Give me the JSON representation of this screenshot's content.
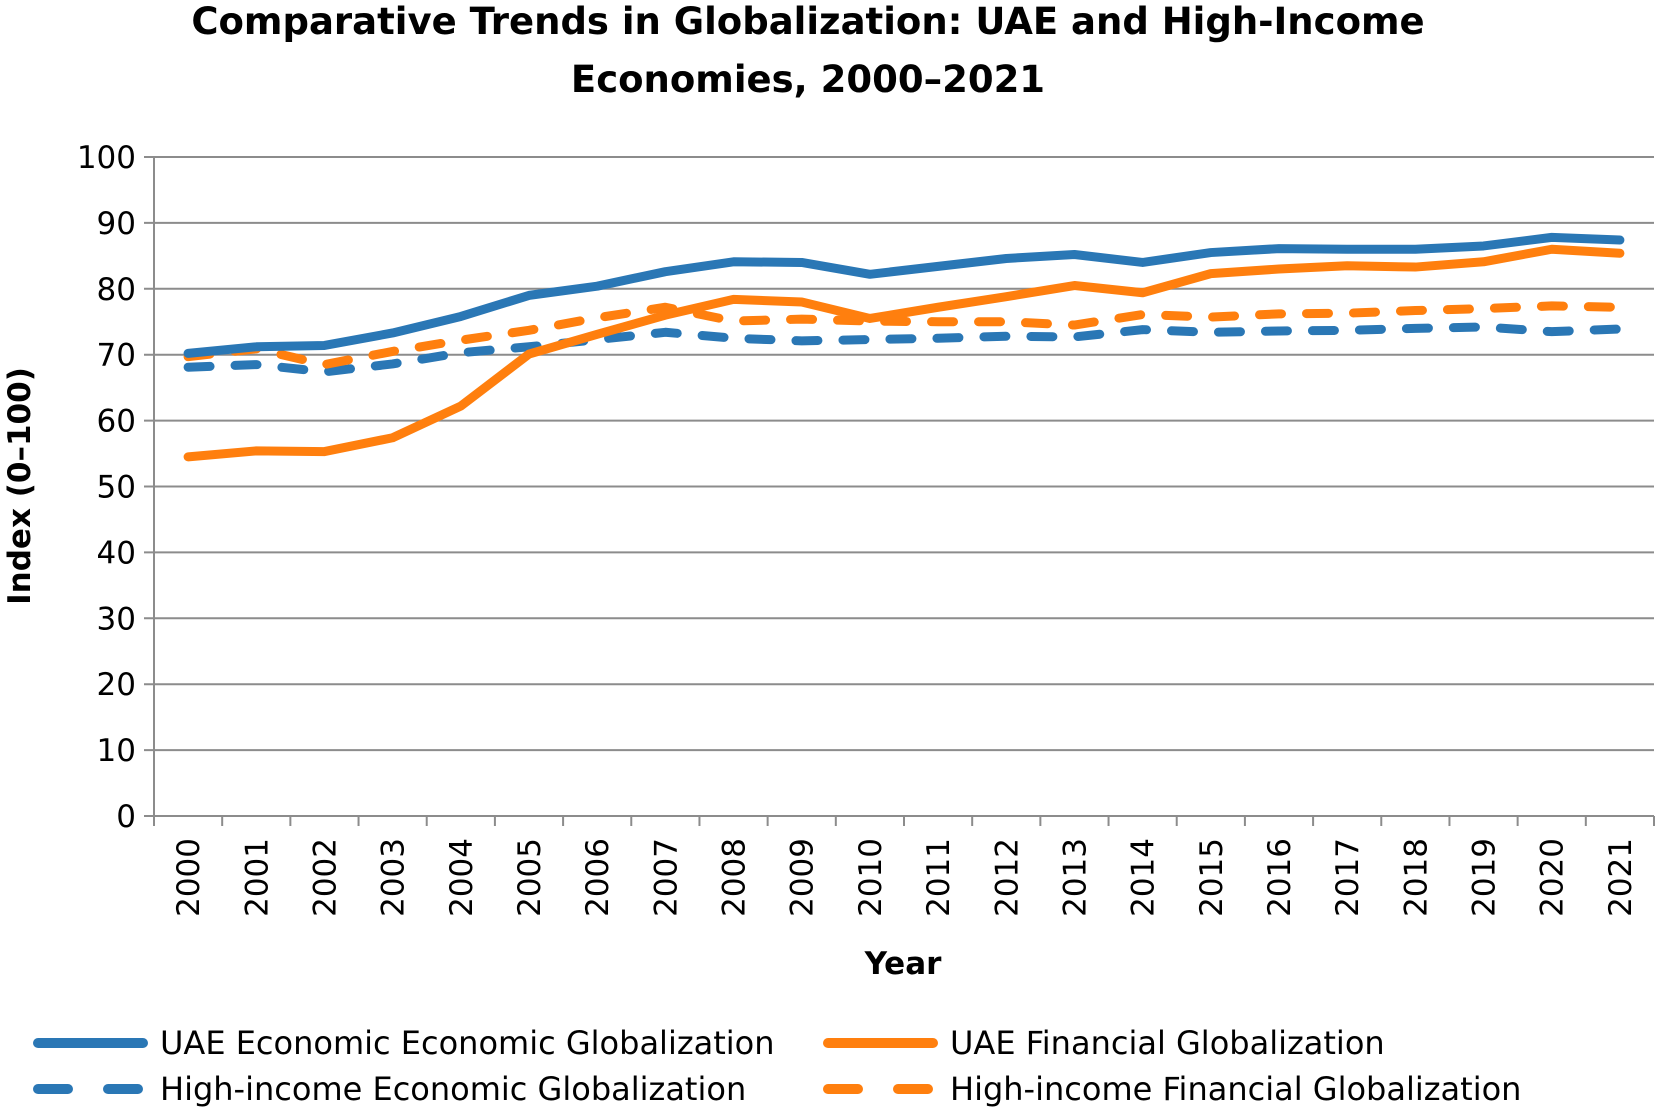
{
  "chart_data": {
    "type": "line",
    "title_lines": [
      "Comparative Trends in Globalization: UAE and High-Income",
      "Economies, 2000–2021"
    ],
    "xlabel": "Year",
    "ylabel": "Index (0–100)",
    "ylim": [
      0,
      100
    ],
    "yticks": [
      "0",
      "10",
      "20",
      "30",
      "40",
      "50",
      "60",
      "70",
      "80",
      "90",
      "100"
    ],
    "grid": true,
    "legend_position": "bottom",
    "categories": [
      "2000",
      "2001",
      "2002",
      "2003",
      "2004",
      "2005",
      "2006",
      "2007",
      "2008",
      "2009",
      "2010",
      "2011",
      "2012",
      "2013",
      "2014",
      "2015",
      "2016",
      "2017",
      "2018",
      "2019",
      "2020",
      "2021"
    ],
    "series": [
      {
        "name": "UAE Economic Economic Globalization",
        "color": "#2a77b5",
        "dash": false,
        "values": [
          70.2,
          71.2,
          71.4,
          73.3,
          75.8,
          79.0,
          80.4,
          82.6,
          84.1,
          84.0,
          82.2,
          83.4,
          84.6,
          85.2,
          84.0,
          85.5,
          86.1,
          86.0,
          86.0,
          86.5,
          87.8,
          87.4
        ]
      },
      {
        "name": "UAE Financial Globalization",
        "color": "#ff7f0e",
        "dash": false,
        "values": [
          54.5,
          55.4,
          55.3,
          57.4,
          62.2,
          70.1,
          73.1,
          76.0,
          78.4,
          78.0,
          75.5,
          77.2,
          78.8,
          80.5,
          79.4,
          82.3,
          83.0,
          83.5,
          83.3,
          84.1,
          86.0,
          85.4
        ]
      },
      {
        "name": "High-income Economic Globalization",
        "color": "#2a77b5",
        "dash": true,
        "values": [
          68.1,
          68.5,
          67.4,
          68.6,
          70.3,
          71.2,
          72.3,
          73.4,
          72.5,
          72.1,
          72.3,
          72.5,
          72.8,
          72.7,
          73.8,
          73.4,
          73.6,
          73.7,
          74.0,
          74.2,
          73.5,
          73.9
        ]
      },
      {
        "name": "High-income Financial Globalization",
        "color": "#ff7f0e",
        "dash": true,
        "values": [
          69.7,
          70.9,
          68.5,
          70.5,
          72.2,
          73.7,
          75.6,
          77.2,
          75.1,
          75.4,
          75.1,
          75.0,
          75.0,
          74.5,
          76.1,
          75.7,
          76.2,
          76.3,
          76.7,
          77.0,
          77.4,
          77.2
        ]
      }
    ]
  }
}
